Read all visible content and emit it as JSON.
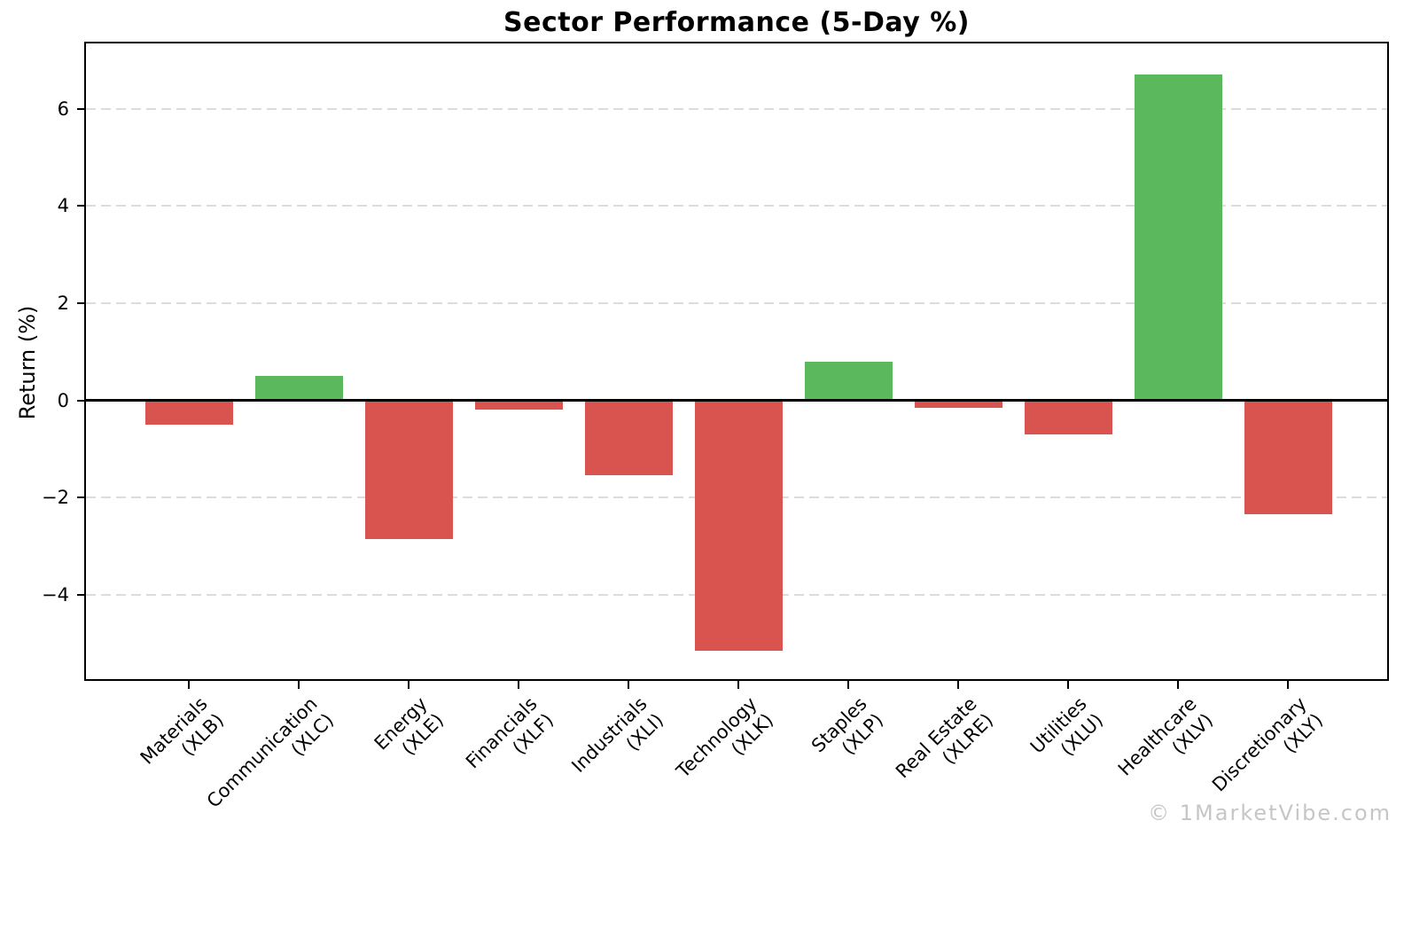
{
  "chart_data": {
    "type": "bar",
    "title": "Sector Performance (5-Day %)",
    "ylabel": "Return (%)",
    "xlabel": "",
    "categories": [
      {
        "sector": "Materials",
        "ticker": "(XLB)"
      },
      {
        "sector": "Communication",
        "ticker": "(XLC)"
      },
      {
        "sector": "Energy",
        "ticker": "(XLE)"
      },
      {
        "sector": "Financials",
        "ticker": "(XLF)"
      },
      {
        "sector": "Industrials",
        "ticker": "(XLI)"
      },
      {
        "sector": "Technology",
        "ticker": "(XLK)"
      },
      {
        "sector": "Staples",
        "ticker": "(XLP)"
      },
      {
        "sector": "Real Estate",
        "ticker": "(XLRE)"
      },
      {
        "sector": "Utilities",
        "ticker": "(XLU)"
      },
      {
        "sector": "Healthcare",
        "ticker": "(XLV)"
      },
      {
        "sector": "Discretionary",
        "ticker": "(XLY)"
      }
    ],
    "values": [
      -0.5,
      0.5,
      -2.85,
      -0.2,
      -1.55,
      -5.15,
      0.8,
      -0.15,
      -0.7,
      6.7,
      -2.35
    ],
    "yticks": [
      6,
      4,
      2,
      0,
      -2,
      -4
    ],
    "ylim": [
      -5.8,
      7.4
    ],
    "bar_colors": {
      "positive": "#5cb85c",
      "negative": "#d9534f"
    },
    "grid": "horizontal-dashed",
    "grid_color": "#dcdcdc",
    "zero_line_color": "#000000",
    "legend": "none"
  },
  "watermark": {
    "text": "© 1MarketVibe.com",
    "color": "#c6c6c6"
  }
}
